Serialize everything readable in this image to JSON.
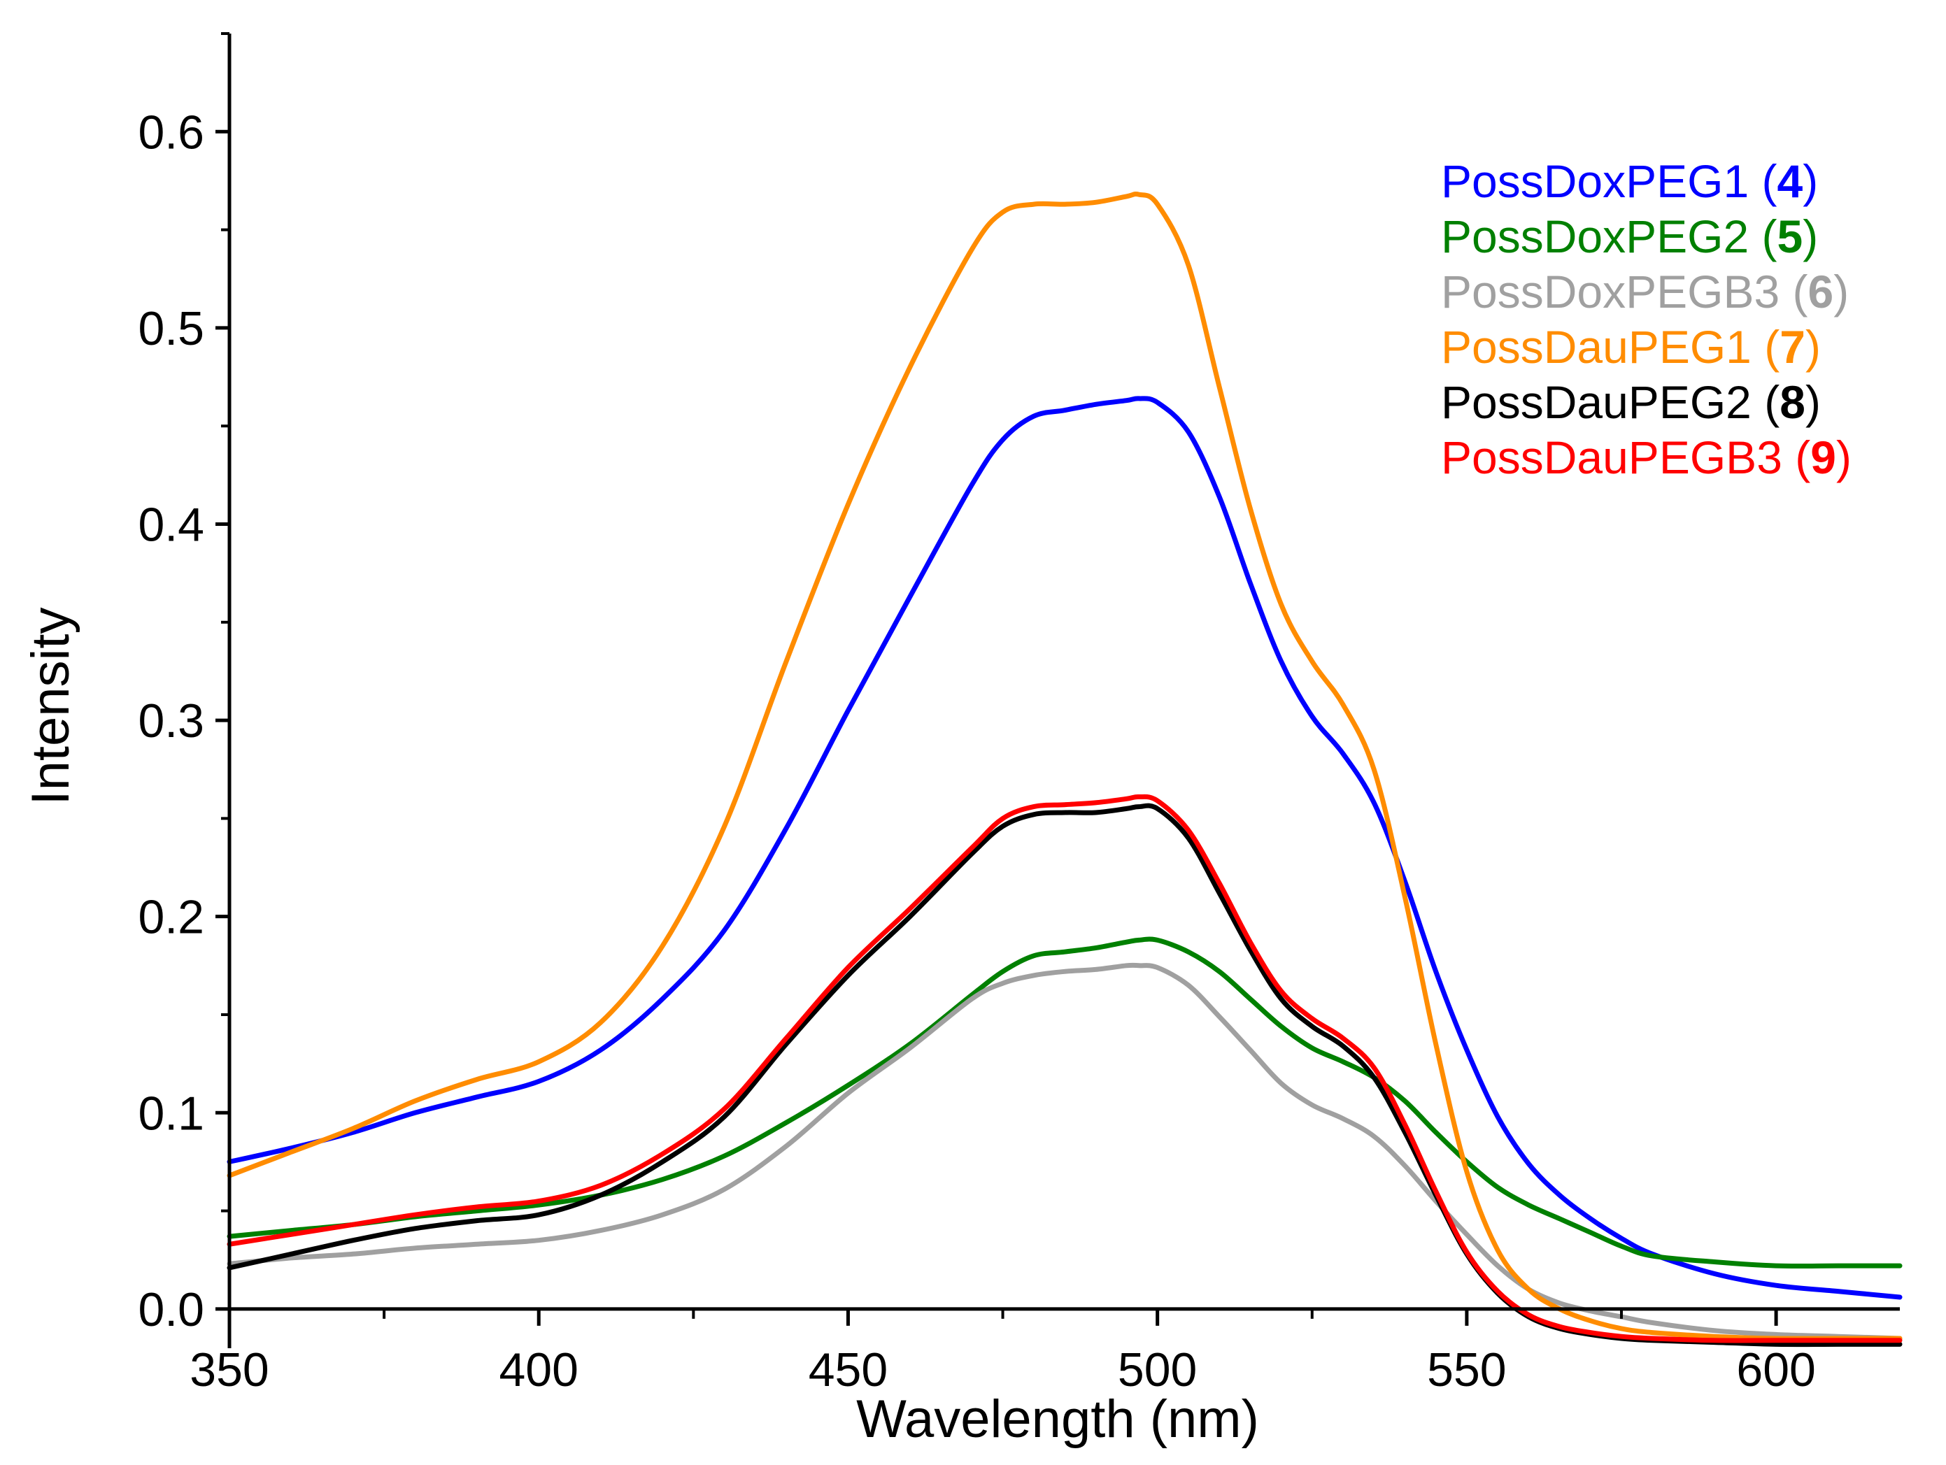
{
  "chart_data": {
    "type": "line",
    "title": "",
    "xlabel": "Wavelength (nm)",
    "ylabel": "Intensity",
    "xlim": [
      350,
      620
    ],
    "ylim": [
      -0.02,
      0.65
    ],
    "x_major_ticks": [
      350,
      400,
      450,
      500,
      550,
      600
    ],
    "x_minor_ticks": [
      375,
      425,
      475,
      525,
      575
    ],
    "y_major_ticks": [
      0.0,
      0.1,
      0.2,
      0.3,
      0.4,
      0.5,
      0.6
    ],
    "y_minor_ticks": [
      0.05,
      0.15,
      0.25,
      0.35,
      0.45,
      0.55,
      0.65
    ],
    "x_tick_labels": [
      "350",
      "400",
      "450",
      "500",
      "550",
      "600"
    ],
    "y_tick_labels": [
      "0.0",
      "0.1",
      "0.2",
      "0.3",
      "0.4",
      "0.5",
      "0.6"
    ],
    "grid": false,
    "legend_position": "top-right",
    "x": [
      350,
      360,
      370,
      380,
      390,
      400,
      410,
      420,
      430,
      440,
      450,
      460,
      470,
      475,
      480,
      485,
      490,
      495,
      497,
      500,
      505,
      510,
      515,
      520,
      525,
      530,
      535,
      540,
      545,
      550,
      555,
      560,
      565,
      570,
      575,
      580,
      590,
      600,
      610,
      620
    ],
    "series": [
      {
        "name": "PossDoxPEG1",
        "number": "4",
        "color": "#0000ff",
        "values": [
          0.075,
          0.082,
          0.09,
          0.1,
          0.108,
          0.116,
          0.132,
          0.158,
          0.193,
          0.245,
          0.305,
          0.363,
          0.42,
          0.443,
          0.455,
          0.458,
          0.461,
          0.463,
          0.464,
          0.462,
          0.447,
          0.414,
          0.37,
          0.33,
          0.302,
          0.283,
          0.258,
          0.218,
          0.172,
          0.132,
          0.098,
          0.074,
          0.058,
          0.046,
          0.036,
          0.028,
          0.018,
          0.012,
          0.009,
          0.006
        ]
      },
      {
        "name": "PossDoxPEG2",
        "number": "5",
        "color": "#008000",
        "values": [
          0.037,
          0.04,
          0.043,
          0.047,
          0.05,
          0.053,
          0.058,
          0.066,
          0.078,
          0.095,
          0.114,
          0.135,
          0.16,
          0.172,
          0.18,
          0.182,
          0.184,
          0.187,
          0.188,
          0.188,
          0.182,
          0.172,
          0.158,
          0.144,
          0.133,
          0.126,
          0.118,
          0.106,
          0.09,
          0.075,
          0.062,
          0.053,
          0.046,
          0.039,
          0.032,
          0.027,
          0.024,
          0.022,
          0.022,
          0.022
        ]
      },
      {
        "name": "PossDoxPEGB3",
        "number": "6",
        "color": "#a0a0a0",
        "values": [
          0.023,
          0.026,
          0.028,
          0.031,
          0.033,
          0.035,
          0.04,
          0.048,
          0.061,
          0.083,
          0.11,
          0.133,
          0.158,
          0.166,
          0.17,
          0.172,
          0.173,
          0.175,
          0.175,
          0.174,
          0.165,
          0.149,
          0.132,
          0.115,
          0.104,
          0.097,
          0.088,
          0.073,
          0.055,
          0.038,
          0.022,
          0.01,
          0.003,
          -0.001,
          -0.004,
          -0.007,
          -0.011,
          -0.013,
          -0.014,
          -0.015
        ]
      },
      {
        "name": "PossDauPEG1",
        "number": "7",
        "color": "#ff8c00",
        "values": [
          0.068,
          0.08,
          0.092,
          0.106,
          0.117,
          0.126,
          0.146,
          0.185,
          0.246,
          0.33,
          0.41,
          0.48,
          0.54,
          0.559,
          0.563,
          0.563,
          0.564,
          0.567,
          0.568,
          0.563,
          0.532,
          0.47,
          0.408,
          0.359,
          0.33,
          0.308,
          0.275,
          0.21,
          0.135,
          0.07,
          0.03,
          0.01,
          0.0,
          -0.006,
          -0.01,
          -0.012,
          -0.014,
          -0.015,
          -0.015,
          -0.015
        ]
      },
      {
        "name": "PossDauPEG2",
        "number": "8",
        "color": "#000000",
        "values": [
          0.021,
          0.028,
          0.035,
          0.041,
          0.045,
          0.048,
          0.058,
          0.075,
          0.098,
          0.135,
          0.17,
          0.2,
          0.232,
          0.246,
          0.252,
          0.253,
          0.253,
          0.255,
          0.256,
          0.255,
          0.24,
          0.212,
          0.183,
          0.158,
          0.144,
          0.134,
          0.118,
          0.09,
          0.058,
          0.028,
          0.008,
          -0.004,
          -0.01,
          -0.013,
          -0.015,
          -0.016,
          -0.017,
          -0.018,
          -0.018,
          -0.018
        ]
      },
      {
        "name": "PossDauPEGB3",
        "number": "9",
        "color": "#ff0000",
        "values": [
          0.033,
          0.038,
          0.043,
          0.048,
          0.052,
          0.055,
          0.063,
          0.079,
          0.102,
          0.138,
          0.174,
          0.204,
          0.235,
          0.25,
          0.256,
          0.257,
          0.258,
          0.26,
          0.261,
          0.259,
          0.244,
          0.217,
          0.187,
          0.162,
          0.148,
          0.138,
          0.123,
          0.094,
          0.06,
          0.029,
          0.009,
          -0.003,
          -0.009,
          -0.012,
          -0.014,
          -0.015,
          -0.016,
          -0.016,
          -0.016,
          -0.016
        ]
      }
    ]
  }
}
